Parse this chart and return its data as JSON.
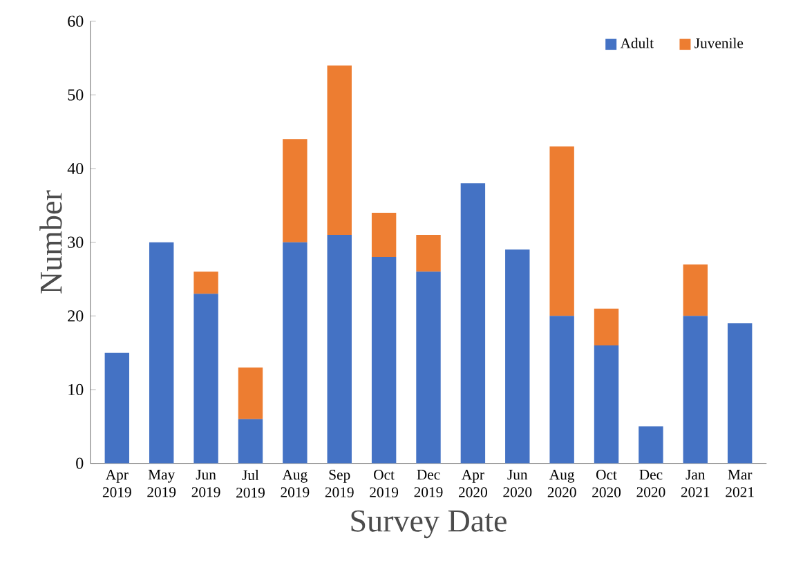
{
  "chart_data": {
    "type": "bar",
    "stacked": true,
    "xlabel": "Survey Date",
    "ylabel": "Number",
    "categories": [
      "Apr 2019",
      "May 2019",
      "Jun 2019",
      "Jul 2019",
      "Aug 2019",
      "Sep 2019",
      "Oct 2019",
      "Dec 2019",
      "Apr 2020",
      "Jun 2020",
      "Aug 2020",
      "Oct 2020",
      "Dec 2020",
      "Jan 2021",
      "Mar 2021"
    ],
    "series": [
      {
        "name": "Adult",
        "color": "#4472c4",
        "values": [
          15,
          30,
          23,
          6,
          30,
          31,
          28,
          26,
          38,
          29,
          20,
          16,
          5,
          20,
          19
        ]
      },
      {
        "name": "Juvenile",
        "color": "#ed7d31",
        "values": [
          0,
          0,
          3,
          7,
          14,
          23,
          6,
          5,
          0,
          0,
          23,
          5,
          0,
          7,
          0
        ]
      }
    ],
    "ylim": [
      0,
      60
    ],
    "yticks": [
      0,
      10,
      20,
      30,
      40,
      50,
      60
    ],
    "grid": false,
    "legend": "top right"
  }
}
